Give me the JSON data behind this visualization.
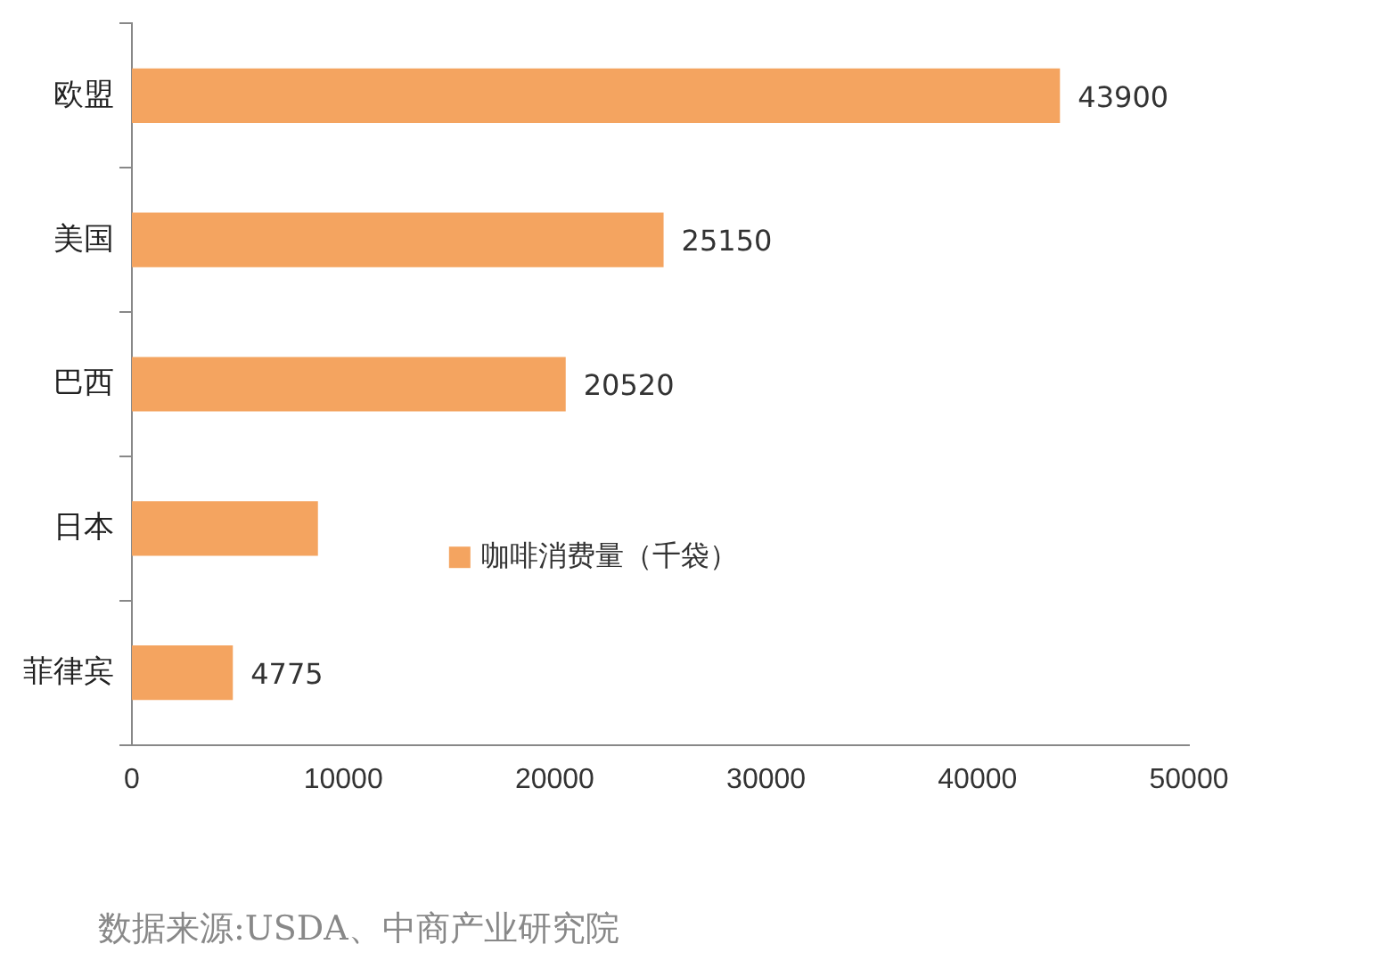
{
  "chart_data": {
    "type": "bar",
    "orientation": "horizontal",
    "categories": [
      "欧盟",
      "美国",
      "巴西",
      "日本",
      "菲律宾"
    ],
    "series": [
      {
        "name": "咖啡消费量（千袋）",
        "color": "#f4a460",
        "values": [
          43900,
          25150,
          20520,
          8800,
          4775
        ]
      }
    ],
    "value_labels": [
      "43900",
      "25150",
      "20520",
      null,
      "4775"
    ],
    "xlim": [
      0,
      50000
    ],
    "xticks": [
      0,
      10000,
      20000,
      30000,
      40000,
      50000
    ],
    "grid": false,
    "legend": "center",
    "annotations": [
      "数据来源:USDA、中商产业研究院"
    ]
  }
}
